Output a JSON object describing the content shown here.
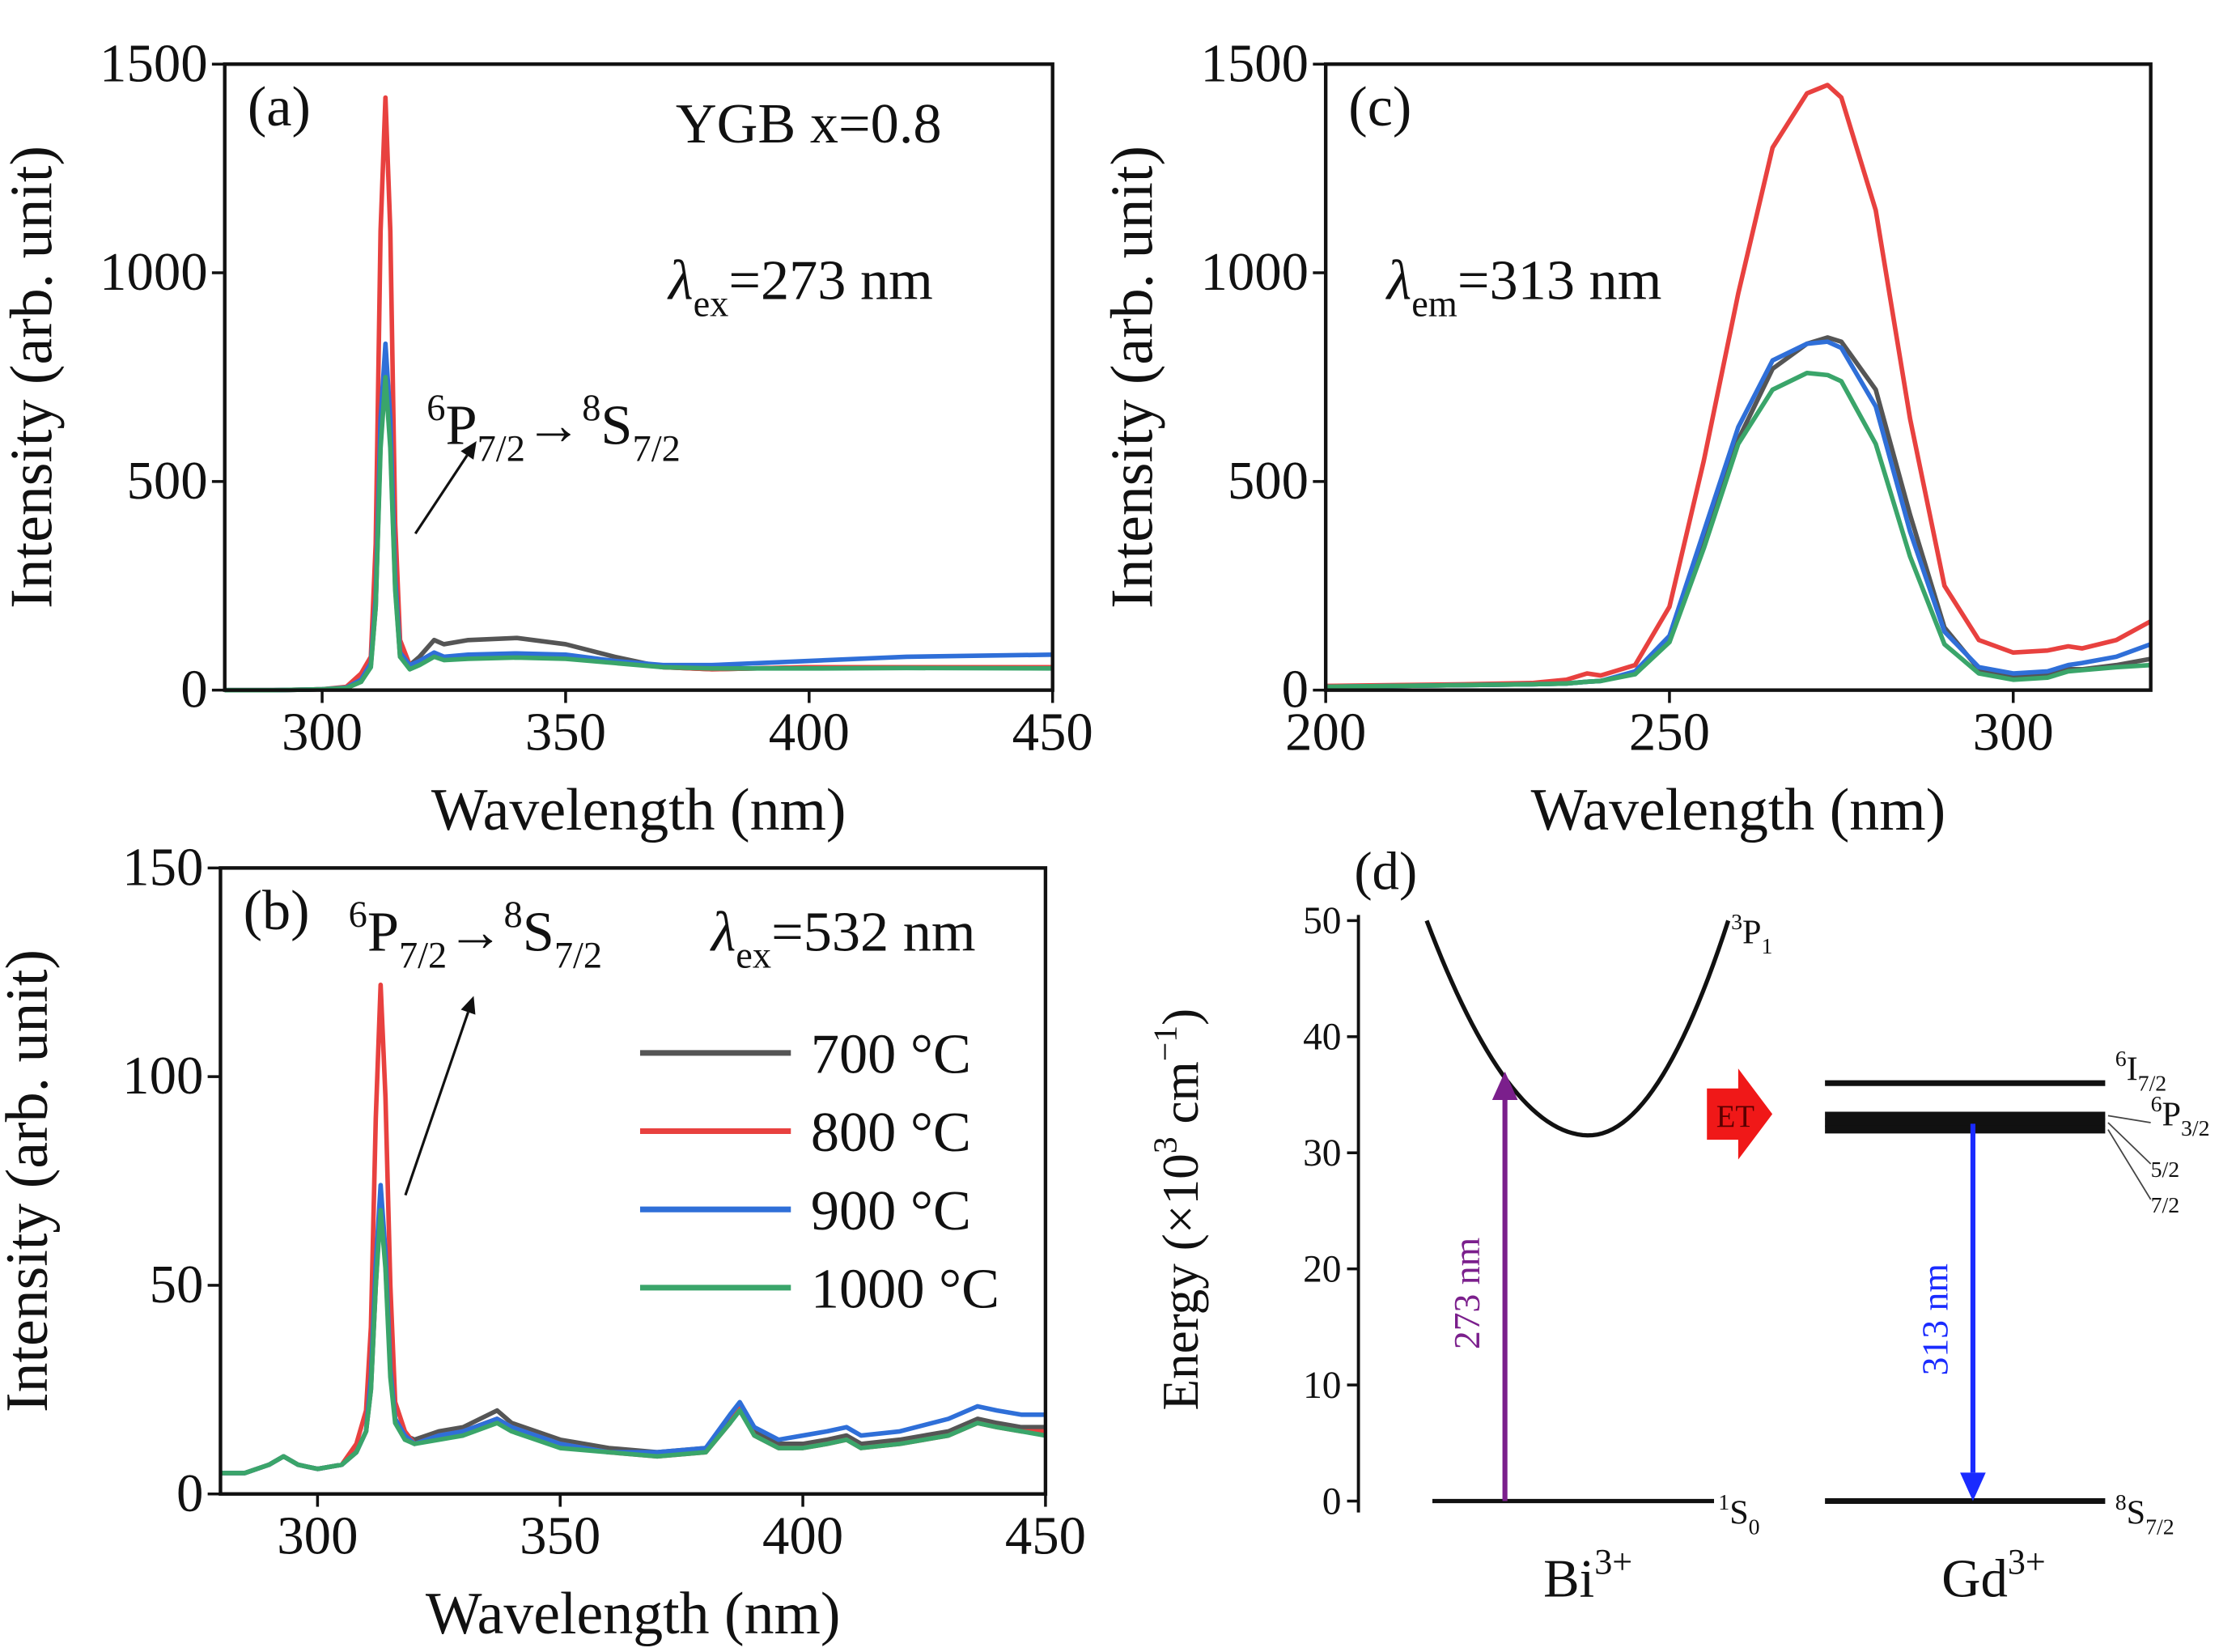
{
  "chart_data": [
    {
      "type": "line",
      "panel": "(a)",
      "xlabel": "Wavelength (nm)",
      "ylabel": "Intensity (arb. unit)",
      "xlim": [
        280,
        450
      ],
      "xticks": [
        300,
        350,
        400,
        450
      ],
      "ylim": [
        0,
        1500
      ],
      "yticks": [
        0,
        500,
        1000,
        1500
      ],
      "x": [
        280,
        290,
        300,
        305,
        308,
        310,
        311,
        312,
        313,
        314,
        315,
        316,
        318,
        320,
        323,
        325,
        330,
        340,
        350,
        360,
        370,
        380,
        400,
        420,
        450
      ],
      "series": [
        {
          "color": "#555555",
          "values": [
            0,
            0,
            2,
            5,
            20,
            60,
            200,
            600,
            760,
            600,
            250,
            80,
            60,
            80,
            120,
            110,
            120,
            125,
            110,
            80,
            55,
            50,
            55,
            55,
            55
          ]
        },
        {
          "color": "#e8413f",
          "values": [
            0,
            0,
            2,
            8,
            40,
            80,
            350,
            1100,
            1420,
            1100,
            400,
            120,
            60,
            65,
            85,
            75,
            80,
            85,
            80,
            70,
            55,
            50,
            55,
            55,
            55
          ]
        },
        {
          "color": "#2f6fd8",
          "values": [
            0,
            0,
            2,
            6,
            25,
            65,
            220,
            650,
            830,
            650,
            270,
            90,
            60,
            70,
            90,
            80,
            85,
            88,
            85,
            70,
            60,
            60,
            70,
            80,
            85
          ]
        },
        {
          "color": "#3aa56a",
          "values": [
            0,
            0,
            2,
            5,
            20,
            55,
            200,
            580,
            750,
            580,
            240,
            80,
            50,
            60,
            80,
            72,
            75,
            78,
            75,
            65,
            55,
            52,
            52,
            53,
            52
          ]
        }
      ],
      "annotations": [
        [
          {
            "text": "YGB x=0.8"
          }
        ],
        [
          {
            "text": "λ",
            "italic": true
          },
          {
            "sub": "ex"
          },
          {
            "text": "=273 nm"
          }
        ],
        [
          {
            "sup": "6"
          },
          {
            "text": "P"
          },
          {
            "sub": "7/2"
          },
          {
            "text": "→"
          },
          {
            "sup": "8"
          },
          {
            "text": "S"
          },
          {
            "sub": "7/2"
          }
        ]
      ]
    },
    {
      "type": "line",
      "panel": "(b)",
      "xlabel": "Wavelength (nm)",
      "ylabel": "Intensity (arb. unit)",
      "xlim": [
        280,
        450
      ],
      "xticks": [
        300,
        350,
        400,
        450
      ],
      "ylim": [
        0,
        150
      ],
      "yticks": [
        0,
        50,
        100,
        150
      ],
      "x": [
        280,
        285,
        290,
        293,
        296,
        300,
        305,
        308,
        310,
        311,
        312,
        313,
        314,
        315,
        316,
        318,
        320,
        325,
        330,
        337,
        340,
        350,
        360,
        370,
        380,
        385,
        387,
        390,
        395,
        400,
        405,
        409,
        412,
        420,
        430,
        436,
        440,
        445,
        450
      ],
      "series": [
        {
          "name": "700 °C",
          "color": "#555555",
          "values": [
            5,
            5,
            7,
            9,
            7,
            6,
            7,
            10,
            15,
            25,
            50,
            70,
            55,
            30,
            18,
            14,
            13,
            15,
            16,
            20,
            17,
            13,
            11,
            10,
            11,
            18,
            21,
            15,
            12,
            12,
            13,
            14,
            12,
            13,
            15,
            18,
            17,
            16,
            16
          ]
        },
        {
          "name": "800 °C",
          "color": "#e8413f",
          "values": [
            5,
            5,
            7,
            9,
            7,
            6,
            7,
            12,
            20,
            40,
            90,
            122,
            95,
            50,
            22,
            15,
            12,
            14,
            15,
            18,
            16,
            12,
            10,
            9,
            10,
            17,
            21,
            14,
            11,
            11,
            12,
            13,
            11,
            12,
            14,
            17,
            16,
            15,
            15
          ]
        },
        {
          "name": "900 °C",
          "color": "#2f6fd8",
          "values": [
            5,
            5,
            7,
            9,
            7,
            6,
            7,
            10,
            15,
            28,
            55,
            74,
            58,
            30,
            18,
            14,
            12,
            14,
            15,
            18,
            16,
            12,
            10,
            10,
            11,
            19,
            22,
            16,
            13,
            14,
            15,
            16,
            14,
            15,
            18,
            21,
            20,
            19,
            19
          ]
        },
        {
          "name": "1000 °C",
          "color": "#3aa56a",
          "values": [
            5,
            5,
            7,
            9,
            7,
            6,
            7,
            10,
            15,
            25,
            50,
            68,
            54,
            28,
            17,
            13,
            12,
            13,
            14,
            17,
            15,
            11,
            10,
            9,
            10,
            17,
            20,
            14,
            11,
            11,
            12,
            13,
            11,
            12,
            14,
            17,
            16,
            15,
            14
          ]
        }
      ],
      "annotations": [
        [
          {
            "sup": "6"
          },
          {
            "text": "P"
          },
          {
            "sub": "7/2"
          },
          {
            "text": "→"
          },
          {
            "sup": "8"
          },
          {
            "text": "S"
          },
          {
            "sub": "7/2"
          }
        ],
        [
          {
            "text": "λ",
            "italic": true
          },
          {
            "sub": "ex"
          },
          {
            "text": "=532 nm"
          }
        ]
      ]
    },
    {
      "type": "line",
      "panel": "(c)",
      "xlabel": "Wavelength (nm)",
      "ylabel": "Intensity (arb. unit)",
      "xlim": [
        200,
        320
      ],
      "xticks": [
        200,
        250,
        300
      ],
      "ylim": [
        0,
        1500
      ],
      "yticks": [
        0,
        500,
        1000,
        1500
      ],
      "x": [
        200,
        210,
        220,
        230,
        235,
        238,
        240,
        245,
        250,
        255,
        260,
        265,
        270,
        273,
        275,
        280,
        285,
        290,
        295,
        300,
        305,
        308,
        310,
        315,
        320
      ],
      "series": [
        {
          "color": "#555555",
          "values": [
            8,
            10,
            12,
            14,
            16,
            20,
            22,
            40,
            120,
            350,
            600,
            770,
            830,
            845,
            835,
            720,
            420,
            150,
            50,
            30,
            35,
            50,
            50,
            60,
            75
          ]
        },
        {
          "color": "#e8413f",
          "values": [
            10,
            12,
            14,
            17,
            25,
            40,
            35,
            60,
            200,
            550,
            950,
            1300,
            1430,
            1450,
            1420,
            1150,
            650,
            250,
            120,
            90,
            95,
            105,
            100,
            120,
            165
          ]
        },
        {
          "color": "#2f6fd8",
          "values": [
            8,
            10,
            12,
            14,
            16,
            20,
            22,
            45,
            130,
            380,
            630,
            790,
            830,
            835,
            820,
            680,
            380,
            140,
            55,
            40,
            45,
            60,
            65,
            80,
            110
          ]
        },
        {
          "color": "#3aa56a",
          "values": [
            8,
            10,
            12,
            14,
            16,
            20,
            22,
            38,
            115,
            340,
            590,
            720,
            760,
            755,
            740,
            590,
            320,
            110,
            40,
            25,
            30,
            45,
            48,
            55,
            60
          ]
        }
      ],
      "annotations": [
        [
          {
            "text": "λ",
            "italic": true
          },
          {
            "sub": "em"
          },
          {
            "text": "=313 nm"
          }
        ]
      ]
    },
    {
      "type": "energy",
      "panel": "(d)",
      "ylabel": [
        {
          "text": "Energy (×10"
        },
        {
          "sup": "3"
        },
        {
          "text": " cm"
        },
        {
          "sup": "−1"
        },
        {
          "text": ")"
        }
      ],
      "ylim": [
        0,
        50
      ],
      "yticks": [
        0,
        10,
        20,
        30,
        40,
        50
      ],
      "curve": {
        "label": [
          {
            "sup": "3"
          },
          {
            "text": "P"
          },
          {
            "sub": "1"
          }
        ],
        "min": 31.5,
        "top": 50
      },
      "bi_levels": [
        {
          "label": [
            {
              "sup": "1"
            },
            {
              "text": "S"
            },
            {
              "sub": "0"
            }
          ],
          "value": 0
        }
      ],
      "gd_levels": [
        {
          "label": [
            {
              "sup": "8"
            },
            {
              "text": "S"
            },
            {
              "sub": "7/2"
            }
          ],
          "value": 0
        },
        {
          "label": [
            {
              "sup": "6"
            },
            {
              "text": "I"
            },
            {
              "sub": "7/2"
            }
          ],
          "value": 36
        },
        {
          "label": [
            {
              "sup": "6"
            },
            {
              "text": "P"
            },
            {
              "sub": "3/2"
            }
          ],
          "value": 33.2
        },
        {
          "label": [
            {
              "sub": "5/2"
            }
          ],
          "value": 32.6
        },
        {
          "label": [
            {
              "sub": "7/2"
            }
          ],
          "value": 32
        }
      ],
      "arrows": [
        {
          "label": "273 nm",
          "from": 0,
          "to": 37,
          "color": "#7b1f8c"
        },
        {
          "label": "313 nm",
          "from": 32.5,
          "to": 0,
          "color": "#1a2bff"
        }
      ],
      "transfer": "ET",
      "ions": [
        [
          {
            "text": "Bi"
          },
          {
            "sup": "3+"
          }
        ],
        [
          {
            "text": "Gd"
          },
          {
            "sup": "3+"
          }
        ]
      ]
    }
  ]
}
